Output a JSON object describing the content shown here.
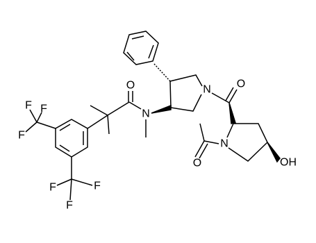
{
  "atoms": [
    {
      "label": "F"
    },
    {
      "label": "F"
    },
    {
      "label": "F"
    },
    {
      "label": "F"
    },
    {
      "label": "F"
    },
    {
      "label": "F"
    },
    {
      "label": "O"
    },
    {
      "label": "N"
    },
    {
      "label": "N"
    },
    {
      "label": "O"
    },
    {
      "label": "N"
    },
    {
      "label": "O"
    },
    {
      "label": "OH"
    }
  ]
}
